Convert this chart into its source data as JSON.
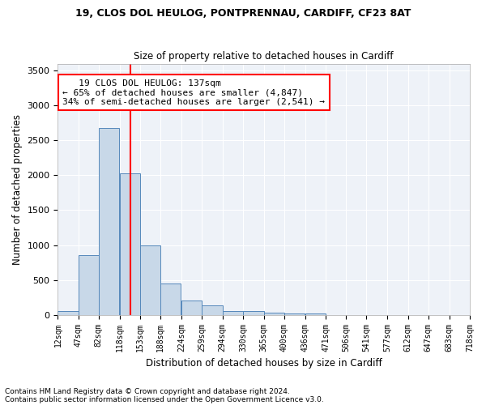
{
  "title1": "19, CLOS DOL HEULOG, PONTPRENNAU, CARDIFF, CF23 8AT",
  "title2": "Size of property relative to detached houses in Cardiff",
  "xlabel": "Distribution of detached houses by size in Cardiff",
  "ylabel": "Number of detached properties",
  "footnote1": "Contains HM Land Registry data © Crown copyright and database right 2024.",
  "footnote2": "Contains public sector information licensed under the Open Government Licence v3.0.",
  "annotation_line1": "19 CLOS DOL HEULOG: 137sqm",
  "annotation_line2": "← 65% of detached houses are smaller (4,847)",
  "annotation_line3": "34% of semi-detached houses are larger (2,541) →",
  "property_size": 137,
  "bar_color": "#c8d8e8",
  "bar_edge_color": "#5588bb",
  "vline_color": "red",
  "background_color": "#eef2f8",
  "grid_color": "#ffffff",
  "bin_edges": [
    12,
    47,
    82,
    118,
    153,
    188,
    224,
    259,
    294,
    330,
    365,
    400,
    436,
    471,
    506,
    541,
    577,
    612,
    647,
    683,
    718
  ],
  "bar_values": [
    55,
    850,
    2680,
    2030,
    990,
    450,
    200,
    130,
    60,
    55,
    35,
    20,
    15,
    0,
    0,
    0,
    0,
    0,
    0,
    0
  ],
  "ylim": [
    0,
    3600
  ],
  "yticks": [
    0,
    500,
    1000,
    1500,
    2000,
    2500,
    3000,
    3500
  ]
}
